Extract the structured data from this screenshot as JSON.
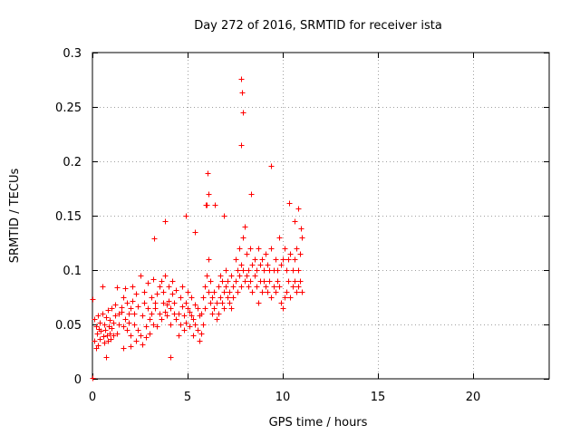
{
  "colors": {
    "series": "#ff0000",
    "axis": "#000000",
    "grid": "#a0a0a0",
    "background": "#ffffff"
  },
  "chart_data": {
    "type": "scatter",
    "title": "Day 272 of 2016, SRMTID for receiver ista",
    "xlabel": "GPS time / hours",
    "ylabel": "SRMTID / TECUs",
    "xlim": [
      0,
      24
    ],
    "ylim": [
      0,
      0.3
    ],
    "xticks": [
      0,
      5,
      10,
      15,
      20
    ],
    "xtick_labels": [
      "0",
      "5",
      "10",
      "15",
      "20"
    ],
    "yticks": [
      0,
      0.05,
      0.1,
      0.15,
      0.2,
      0.25,
      0.3
    ],
    "ytick_labels": [
      "0",
      "0.05",
      "0.1",
      "0.15",
      "0.2",
      "0.25",
      "0.3"
    ],
    "grid": true,
    "marker": "plus",
    "series": [
      {
        "name": "SRMTID",
        "x": [
          0.0,
          0.0,
          0.1,
          0.1,
          0.2,
          0.2,
          0.25,
          0.3,
          0.3,
          0.35,
          0.4,
          0.4,
          0.45,
          0.5,
          0.5,
          0.55,
          0.6,
          0.6,
          0.65,
          0.7,
          0.7,
          0.75,
          0.8,
          0.8,
          0.85,
          0.9,
          0.9,
          0.95,
          1.0,
          1.0,
          1.1,
          1.1,
          1.2,
          1.2,
          1.3,
          1.3,
          1.4,
          1.4,
          1.5,
          1.5,
          1.6,
          1.6,
          1.7,
          1.7,
          1.8,
          1.8,
          1.9,
          1.9,
          2.0,
          2.0,
          2.1,
          2.1,
          2.2,
          2.2,
          2.3,
          2.3,
          2.4,
          2.4,
          2.5,
          2.5,
          2.6,
          2.6,
          2.7,
          2.7,
          2.8,
          2.8,
          2.9,
          2.9,
          3.0,
          3.0,
          3.1,
          3.1,
          3.2,
          3.2,
          3.3,
          3.3,
          3.4,
          3.4,
          3.5,
          3.5,
          3.6,
          3.6,
          3.7,
          3.7,
          3.8,
          3.8,
          3.9,
          3.9,
          4.0,
          4.0,
          4.1,
          4.1,
          4.2,
          4.2,
          4.3,
          4.3,
          4.4,
          4.4,
          4.5,
          4.5,
          4.6,
          4.6,
          4.7,
          4.7,
          4.8,
          4.8,
          4.9,
          4.9,
          5.0,
          5.0,
          5.1,
          5.1,
          5.2,
          5.2,
          5.3,
          5.3,
          5.4,
          5.4,
          5.5,
          5.5,
          5.6,
          5.6,
          5.7,
          5.7,
          5.8,
          5.8,
          5.9,
          5.9,
          6.0,
          6.0,
          6.1,
          6.1,
          6.2,
          6.2,
          6.3,
          6.3,
          6.4,
          6.4,
          6.5,
          6.5,
          6.6,
          6.6,
          6.7,
          6.7,
          6.8,
          6.8,
          6.9,
          6.9,
          7.0,
          7.0,
          7.1,
          7.1,
          7.2,
          7.2,
          7.3,
          7.3,
          7.4,
          7.4,
          7.5,
          7.5,
          7.6,
          7.6,
          7.7,
          7.7,
          7.8,
          7.8,
          7.9,
          7.9,
          8.0,
          8.0,
          8.1,
          8.1,
          8.2,
          8.2,
          8.3,
          8.3,
          8.4,
          8.4,
          8.5,
          8.5,
          8.6,
          8.6,
          8.7,
          8.7,
          8.8,
          8.8,
          8.9,
          8.9,
          9.0,
          9.0,
          9.1,
          9.1,
          9.2,
          9.2,
          9.3,
          9.3,
          9.4,
          9.4,
          9.5,
          9.5,
          9.6,
          9.6,
          9.7,
          9.7,
          9.8,
          9.8,
          9.9,
          9.9,
          10.0,
          10.0,
          10.1,
          10.1,
          10.2,
          10.2,
          10.3,
          10.3,
          10.4,
          10.4,
          10.5,
          10.5,
          10.6,
          10.6,
          10.7,
          10.7,
          10.8,
          10.8,
          10.9,
          10.9,
          11.0,
          11.0,
          7.8,
          7.85,
          7.9,
          7.8,
          6.05,
          6.1,
          5.95,
          3.8,
          3.25,
          8.35,
          9.4,
          10.35,
          10.8,
          10.6,
          10.95,
          4.9,
          5.4,
          6.45,
          6.9,
          4.1,
          2.0,
          1.6
        ],
        "y": [
          0.073,
          0.001,
          0.035,
          0.055,
          0.028,
          0.048,
          0.042,
          0.058,
          0.031,
          0.046,
          0.037,
          0.052,
          0.044,
          0.085,
          0.06,
          0.039,
          0.033,
          0.05,
          0.045,
          0.02,
          0.057,
          0.04,
          0.063,
          0.035,
          0.048,
          0.054,
          0.042,
          0.037,
          0.065,
          0.047,
          0.052,
          0.04,
          0.068,
          0.058,
          0.042,
          0.084,
          0.06,
          0.05,
          0.062,
          0.066,
          0.048,
          0.075,
          0.083,
          0.055,
          0.07,
          0.045,
          0.052,
          0.06,
          0.065,
          0.04,
          0.072,
          0.085,
          0.05,
          0.06,
          0.035,
          0.078,
          0.045,
          0.067,
          0.095,
          0.04,
          0.058,
          0.032,
          0.07,
          0.08,
          0.048,
          0.038,
          0.065,
          0.088,
          0.055,
          0.042,
          0.06,
          0.075,
          0.05,
          0.092,
          0.065,
          0.07,
          0.048,
          0.078,
          0.085,
          0.06,
          0.09,
          0.055,
          0.07,
          0.08,
          0.062,
          0.095,
          0.058,
          0.068,
          0.085,
          0.072,
          0.05,
          0.065,
          0.078,
          0.09,
          0.06,
          0.07,
          0.055,
          0.082,
          0.06,
          0.04,
          0.075,
          0.05,
          0.067,
          0.085,
          0.045,
          0.058,
          0.07,
          0.052,
          0.08,
          0.065,
          0.062,
          0.048,
          0.075,
          0.058,
          0.055,
          0.04,
          0.068,
          0.05,
          0.045,
          0.065,
          0.035,
          0.058,
          0.06,
          0.042,
          0.075,
          0.05,
          0.085,
          0.065,
          0.16,
          0.095,
          0.08,
          0.11,
          0.07,
          0.09,
          0.06,
          0.075,
          0.065,
          0.08,
          0.07,
          0.055,
          0.085,
          0.06,
          0.075,
          0.095,
          0.07,
          0.09,
          0.08,
          0.065,
          0.085,
          0.1,
          0.075,
          0.09,
          0.07,
          0.08,
          0.065,
          0.095,
          0.085,
          0.075,
          0.11,
          0.09,
          0.1,
          0.08,
          0.12,
          0.095,
          0.105,
          0.085,
          0.13,
          0.1,
          0.14,
          0.09,
          0.115,
          0.095,
          0.1,
          0.085,
          0.12,
          0.09,
          0.105,
          0.08,
          0.11,
          0.095,
          0.1,
          0.085,
          0.12,
          0.07,
          0.105,
          0.09,
          0.11,
          0.08,
          0.1,
          0.09,
          0.115,
          0.085,
          0.105,
          0.08,
          0.1,
          0.09,
          0.12,
          0.075,
          0.1,
          0.085,
          0.11,
          0.08,
          0.1,
          0.09,
          0.13,
          0.085,
          0.105,
          0.07,
          0.11,
          0.065,
          0.12,
          0.075,
          0.1,
          0.08,
          0.11,
          0.09,
          0.115,
          0.075,
          0.1,
          0.085,
          0.11,
          0.09,
          0.12,
          0.08,
          0.1,
          0.085,
          0.115,
          0.09,
          0.13,
          0.08,
          0.276,
          0.263,
          0.245,
          0.215,
          0.189,
          0.17,
          0.16,
          0.145,
          0.129,
          0.17,
          0.196,
          0.162,
          0.157,
          0.145,
          0.138,
          0.15,
          0.135,
          0.16,
          0.15,
          0.02,
          0.03,
          0.028
        ]
      }
    ]
  }
}
